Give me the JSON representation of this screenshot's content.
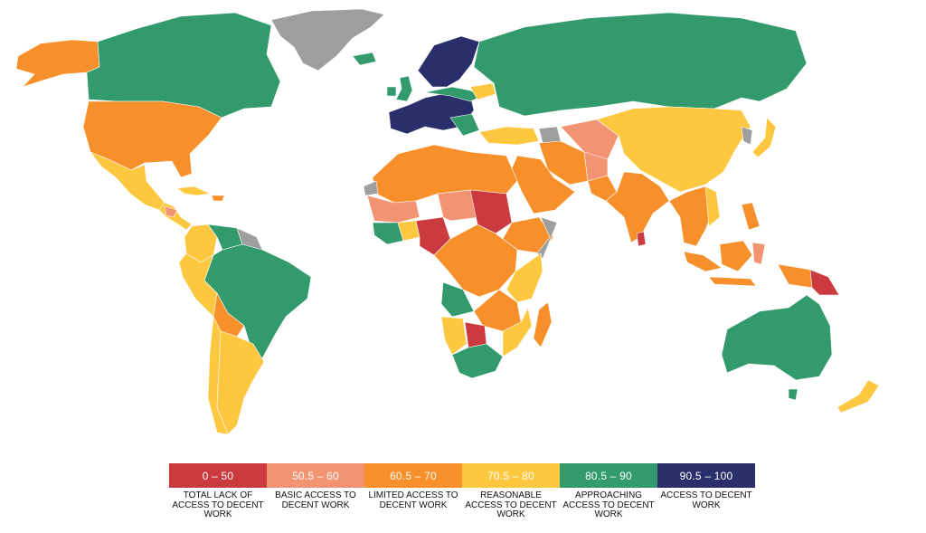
{
  "colors": {
    "c0": "#cb3a3f",
    "c1": "#f29471",
    "c2": "#f7902a",
    "c3": "#fdc83f",
    "c4": "#339a6d",
    "c5": "#2a2e6a",
    "nodata": "#9e9e9e"
  },
  "legend": [
    {
      "range": "0 – 50",
      "label": "TOTAL LACK OF ACCESS TO DECENT WORK",
      "color": "#cb3a3f"
    },
    {
      "range": "50.5 – 60",
      "label": "BASIC ACCESS TO DECENT WORK",
      "color": "#f29471"
    },
    {
      "range": "60.5 – 70",
      "label": "LIMITED ACCESS TO DECENT WORK",
      "color": "#f7902a"
    },
    {
      "range": "70.5 – 80",
      "label": "REASONABLE ACCESS TO DECENT WORK",
      "color": "#fdc83f"
    },
    {
      "range": "80.5 – 90",
      "label": "APPROACHING ACCESS TO DECENT WORK",
      "color": "#339a6d"
    },
    {
      "range": "90.5 – 100",
      "label": "ACCESS TO DECENT WORK",
      "color": "#2a2e6a"
    }
  ]
}
